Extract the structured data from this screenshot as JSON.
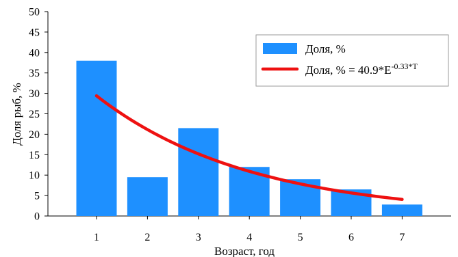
{
  "chart_data": {
    "type": "bar",
    "categories": [
      "1",
      "2",
      "3",
      "4",
      "5",
      "6",
      "7"
    ],
    "series": [
      {
        "name": "Доля, %",
        "type": "bar",
        "values": [
          38,
          9.5,
          21.5,
          12,
          9,
          6.5,
          2.8
        ],
        "color": "#1e90ff"
      }
    ],
    "trendline": {
      "label_main": "Доля, % = 40.9*E",
      "label_exponent": "-0.33*T",
      "a": 40.9,
      "b": -0.33,
      "x_start": 1,
      "x_end": 7,
      "color": "#ee1111"
    },
    "xlabel": "Возраст, год",
    "ylabel": "Доля рыб, %",
    "ylim": [
      0,
      50
    ],
    "yticks": [
      "0",
      "5",
      "10",
      "15",
      "20",
      "25",
      "30",
      "35",
      "40",
      "45",
      "50"
    ],
    "grid": false,
    "legend_position": "top-right"
  }
}
